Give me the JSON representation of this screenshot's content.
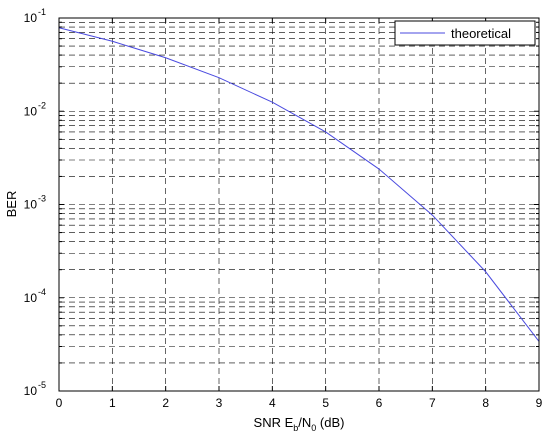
{
  "chart_data": {
    "type": "line",
    "title": "",
    "xlabel": {
      "parts": [
        {
          "text": "SNR   E",
          "sub": false
        },
        {
          "text": "b",
          "sub": true
        },
        {
          "text": "/N",
          "sub": false
        },
        {
          "text": "0",
          "sub": true
        },
        {
          "text": " (dB)",
          "sub": false
        }
      ]
    },
    "ylabel": "BER",
    "xlim": [
      0,
      9
    ],
    "ylim": [
      1e-05,
      0.1
    ],
    "yscale": "log",
    "grid": true,
    "legend": "top-right",
    "x_ticks": [
      "0",
      "1",
      "2",
      "3",
      "4",
      "5",
      "6",
      "7",
      "8",
      "9"
    ],
    "y_ticks": [
      {
        "base": "10",
        "exp": "-5",
        "value": 1e-05
      },
      {
        "base": "10",
        "exp": "-4",
        "value": 0.0001
      },
      {
        "base": "10",
        "exp": "-3",
        "value": 0.001
      },
      {
        "base": "10",
        "exp": "-2",
        "value": 0.01
      },
      {
        "base": "10",
        "exp": "-1",
        "value": 0.1
      }
    ],
    "series": [
      {
        "name": "theoretical",
        "color": "#4a4adf",
        "x": [
          0,
          1,
          2,
          3,
          4,
          5,
          6,
          7,
          8,
          9
        ],
        "y": [
          0.0786,
          0.0563,
          0.0375,
          0.0229,
          0.0125,
          0.006,
          0.0024,
          0.00077,
          0.00019,
          3.4e-05
        ]
      }
    ]
  }
}
